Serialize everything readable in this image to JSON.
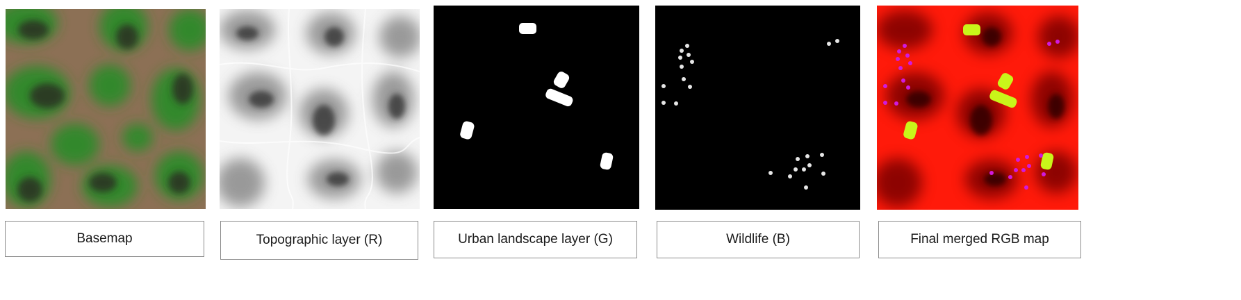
{
  "panels": [
    {
      "id": "basemap",
      "label": "Basemap"
    },
    {
      "id": "topographic",
      "label": "Topographic layer (R)"
    },
    {
      "id": "urban",
      "label": "Urban landscape layer (G)"
    },
    {
      "id": "wildlife",
      "label": "Wildlife (B)"
    },
    {
      "id": "merged",
      "label": "Final merged RGB map"
    }
  ],
  "colors": {
    "basemap_ground": "#8c7055",
    "basemap_vegetation": "#2f8a2a",
    "basemap_dark": "#2a2a22",
    "topo_light": "#f4f4f4",
    "topo_dark": "#2e2e2e",
    "urban_block": "#ffffff",
    "wildlife_point": "#e6e6e6",
    "merged_red": "#ff1a0a",
    "merged_dark": "#2a0200",
    "merged_urban": "#c9f51a",
    "merged_wildlife": "#d01adf"
  }
}
